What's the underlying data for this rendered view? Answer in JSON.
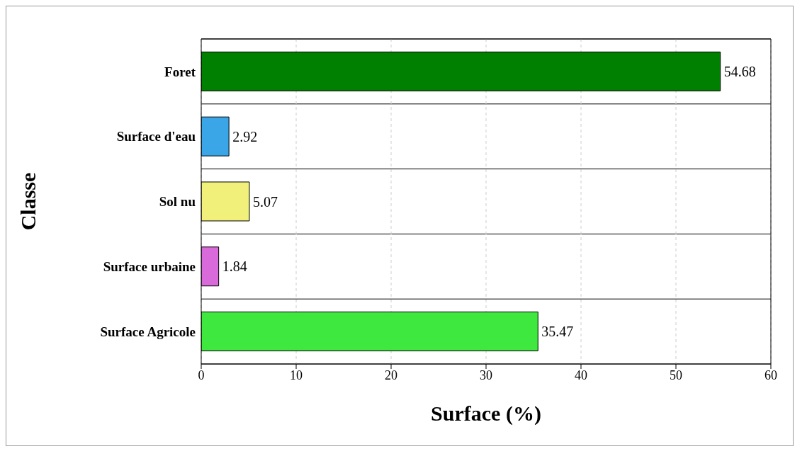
{
  "chart_data": {
    "type": "bar",
    "orientation": "horizontal",
    "categories": [
      "Foret",
      "Surface d'eau",
      "Sol nu",
      "Surface urbaine",
      "Surface Agricole"
    ],
    "values": [
      54.68,
      2.92,
      5.07,
      1.84,
      35.47
    ],
    "colors": [
      "#008000",
      "#3aa6e8",
      "#f0f07a",
      "#d96ad9",
      "#3ee83e"
    ],
    "xlim": [
      0,
      60
    ],
    "xticks": [
      0,
      10,
      20,
      30,
      40,
      50,
      60
    ],
    "xlabel": "Surface (%)",
    "ylabel": "Classe",
    "grid": true,
    "data_labels": true
  }
}
